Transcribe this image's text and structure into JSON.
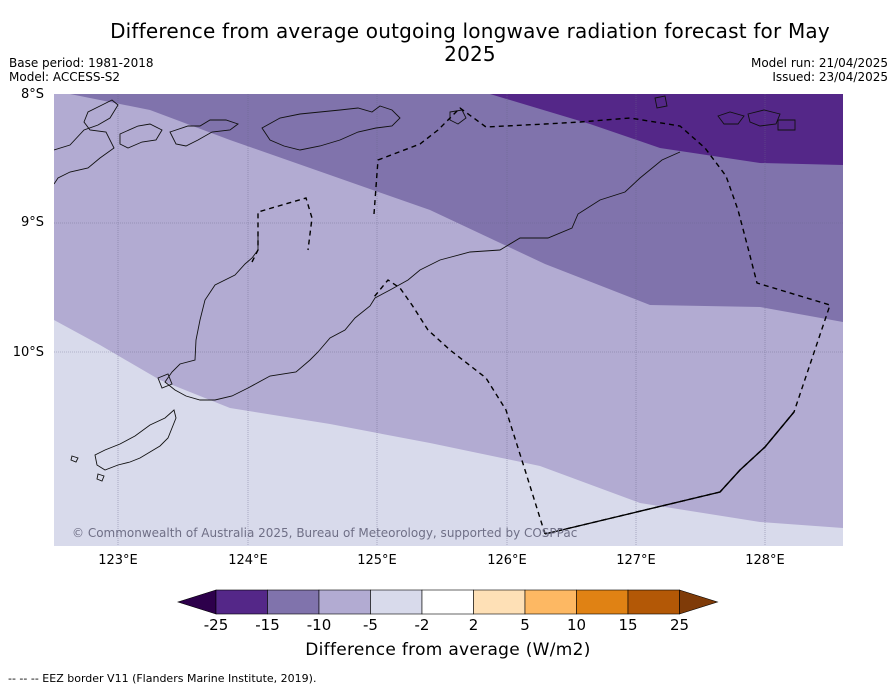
{
  "header": {
    "title": "Difference from average outgoing longwave radiation forecast for May 2025",
    "base_period": "Base period: 1981-2018",
    "model": "Model: ACCESS-S2",
    "model_run": "Model run: 21/04/2025",
    "issued": "Issued: 23/04/2025"
  },
  "map": {
    "lat_labels": [
      "8°S",
      "9°S",
      "10°S"
    ],
    "lon_labels": [
      "123°E",
      "124°E",
      "125°E",
      "126°E",
      "127°E",
      "128°E"
    ],
    "copyright": "© Commonwealth of Australia 2025, Bureau of Meteorology, supported by COSPPac",
    "shading_colors": {
      "below_minus_15": "#542788",
      "minus_15_to_minus_10": "#8073ac",
      "minus_10_to_minus_5": "#b2abd2",
      "minus_5_to_minus_2": "#d8daeb"
    }
  },
  "colorbar": {
    "ticks": [
      "-25",
      "-15",
      "-10",
      "-5",
      "-2",
      "2",
      "5",
      "10",
      "15",
      "25"
    ],
    "colors": [
      "#2d004b",
      "#542788",
      "#8073ac",
      "#b2abd2",
      "#d8daeb",
      "#ffffff",
      "#fee0b6",
      "#fdb863",
      "#e08214",
      "#b35806",
      "#7f3b08"
    ],
    "label": "Difference from average (W/m2)"
  },
  "footnote": "-- -- -- EEZ border V11 (Flanders Marine Institute, 2019)."
}
